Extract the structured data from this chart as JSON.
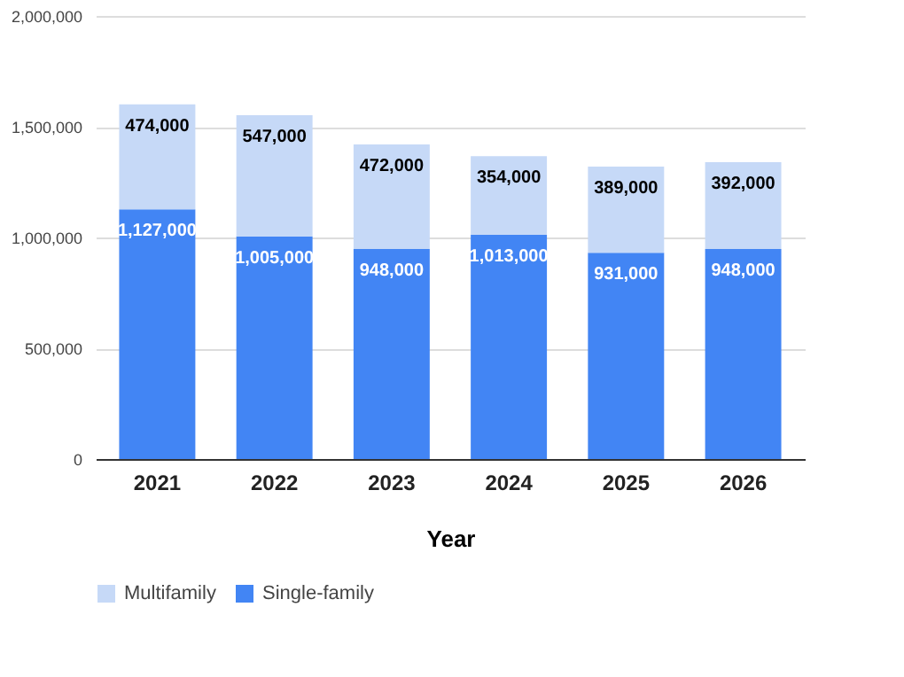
{
  "chart_data": {
    "type": "bar",
    "stacked": true,
    "xlabel": "Year",
    "categories": [
      "2021",
      "2022",
      "2023",
      "2024",
      "2025",
      "2026"
    ],
    "series": [
      {
        "name": "Single-family",
        "color": "#4285f4",
        "values": [
          1127000,
          1005000,
          948000,
          1013000,
          931000,
          948000
        ],
        "value_labels": [
          "1,127,000",
          "1,005,000",
          "948,000",
          "1,013,000",
          "931,000",
          "948,000"
        ]
      },
      {
        "name": "Multifamily",
        "color": "#c6d9f7",
        "values": [
          474000,
          547000,
          472000,
          354000,
          389000,
          392000
        ],
        "value_labels": [
          "474,000",
          "547,000",
          "472,000",
          "354,000",
          "389,000",
          "392,000"
        ]
      }
    ],
    "ylim": [
      0,
      2000000
    ],
    "yticks": [
      0,
      {
        "value": 500000,
        "label": "500,000"
      },
      {
        "value": 1000000,
        "label": "1,000,000"
      },
      {
        "value": 1500000,
        "label": "1,500,000"
      },
      {
        "value": 2000000,
        "label": "2,000,000"
      }
    ],
    "grid": "y",
    "legend": "bottom"
  }
}
